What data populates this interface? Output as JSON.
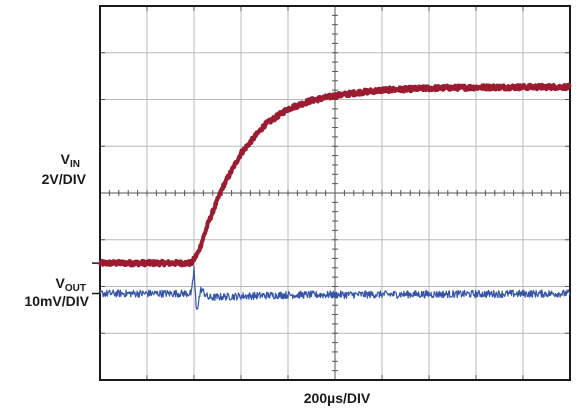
{
  "chart_data": {
    "type": "line",
    "title": "",
    "grid": true,
    "divisions": {
      "x": 10,
      "y": 8
    },
    "xlabel": "200µs/DIV",
    "x_unit_per_div": "200µs",
    "xlim_div": [
      0,
      10
    ],
    "series": [
      {
        "label_main": "V",
        "label_sub": "IN",
        "scale": "2V/DIV",
        "color": "#9b1b30",
        "reference_div": 2.5,
        "points_div": [
          [
            0,
            2.5
          ],
          [
            1.95,
            2.5
          ],
          [
            2.1,
            2.75
          ],
          [
            2.3,
            3.35
          ],
          [
            2.6,
            4.1
          ],
          [
            3.0,
            4.85
          ],
          [
            3.5,
            5.45
          ],
          [
            4.0,
            5.8
          ],
          [
            4.5,
            5.98
          ],
          [
            5.0,
            6.08
          ],
          [
            5.5,
            6.15
          ],
          [
            6.0,
            6.2
          ],
          [
            7.0,
            6.24
          ],
          [
            8.0,
            6.26
          ],
          [
            10.0,
            6.27
          ]
        ],
        "noise_div": 0.05
      },
      {
        "label_main": "V",
        "label_sub": "OUT",
        "scale": "10mV/DIV",
        "color": "#3556a8",
        "reference_div": 1.85,
        "points_div": [
          [
            0,
            1.85
          ],
          [
            1.95,
            1.85
          ],
          [
            2.0,
            2.4
          ],
          [
            2.05,
            1.45
          ],
          [
            2.15,
            1.95
          ],
          [
            2.3,
            1.76
          ],
          [
            2.6,
            1.78
          ],
          [
            3.2,
            1.8
          ],
          [
            4.0,
            1.82
          ],
          [
            10.0,
            1.85
          ]
        ],
        "noise_div": 0.08
      }
    ]
  }
}
